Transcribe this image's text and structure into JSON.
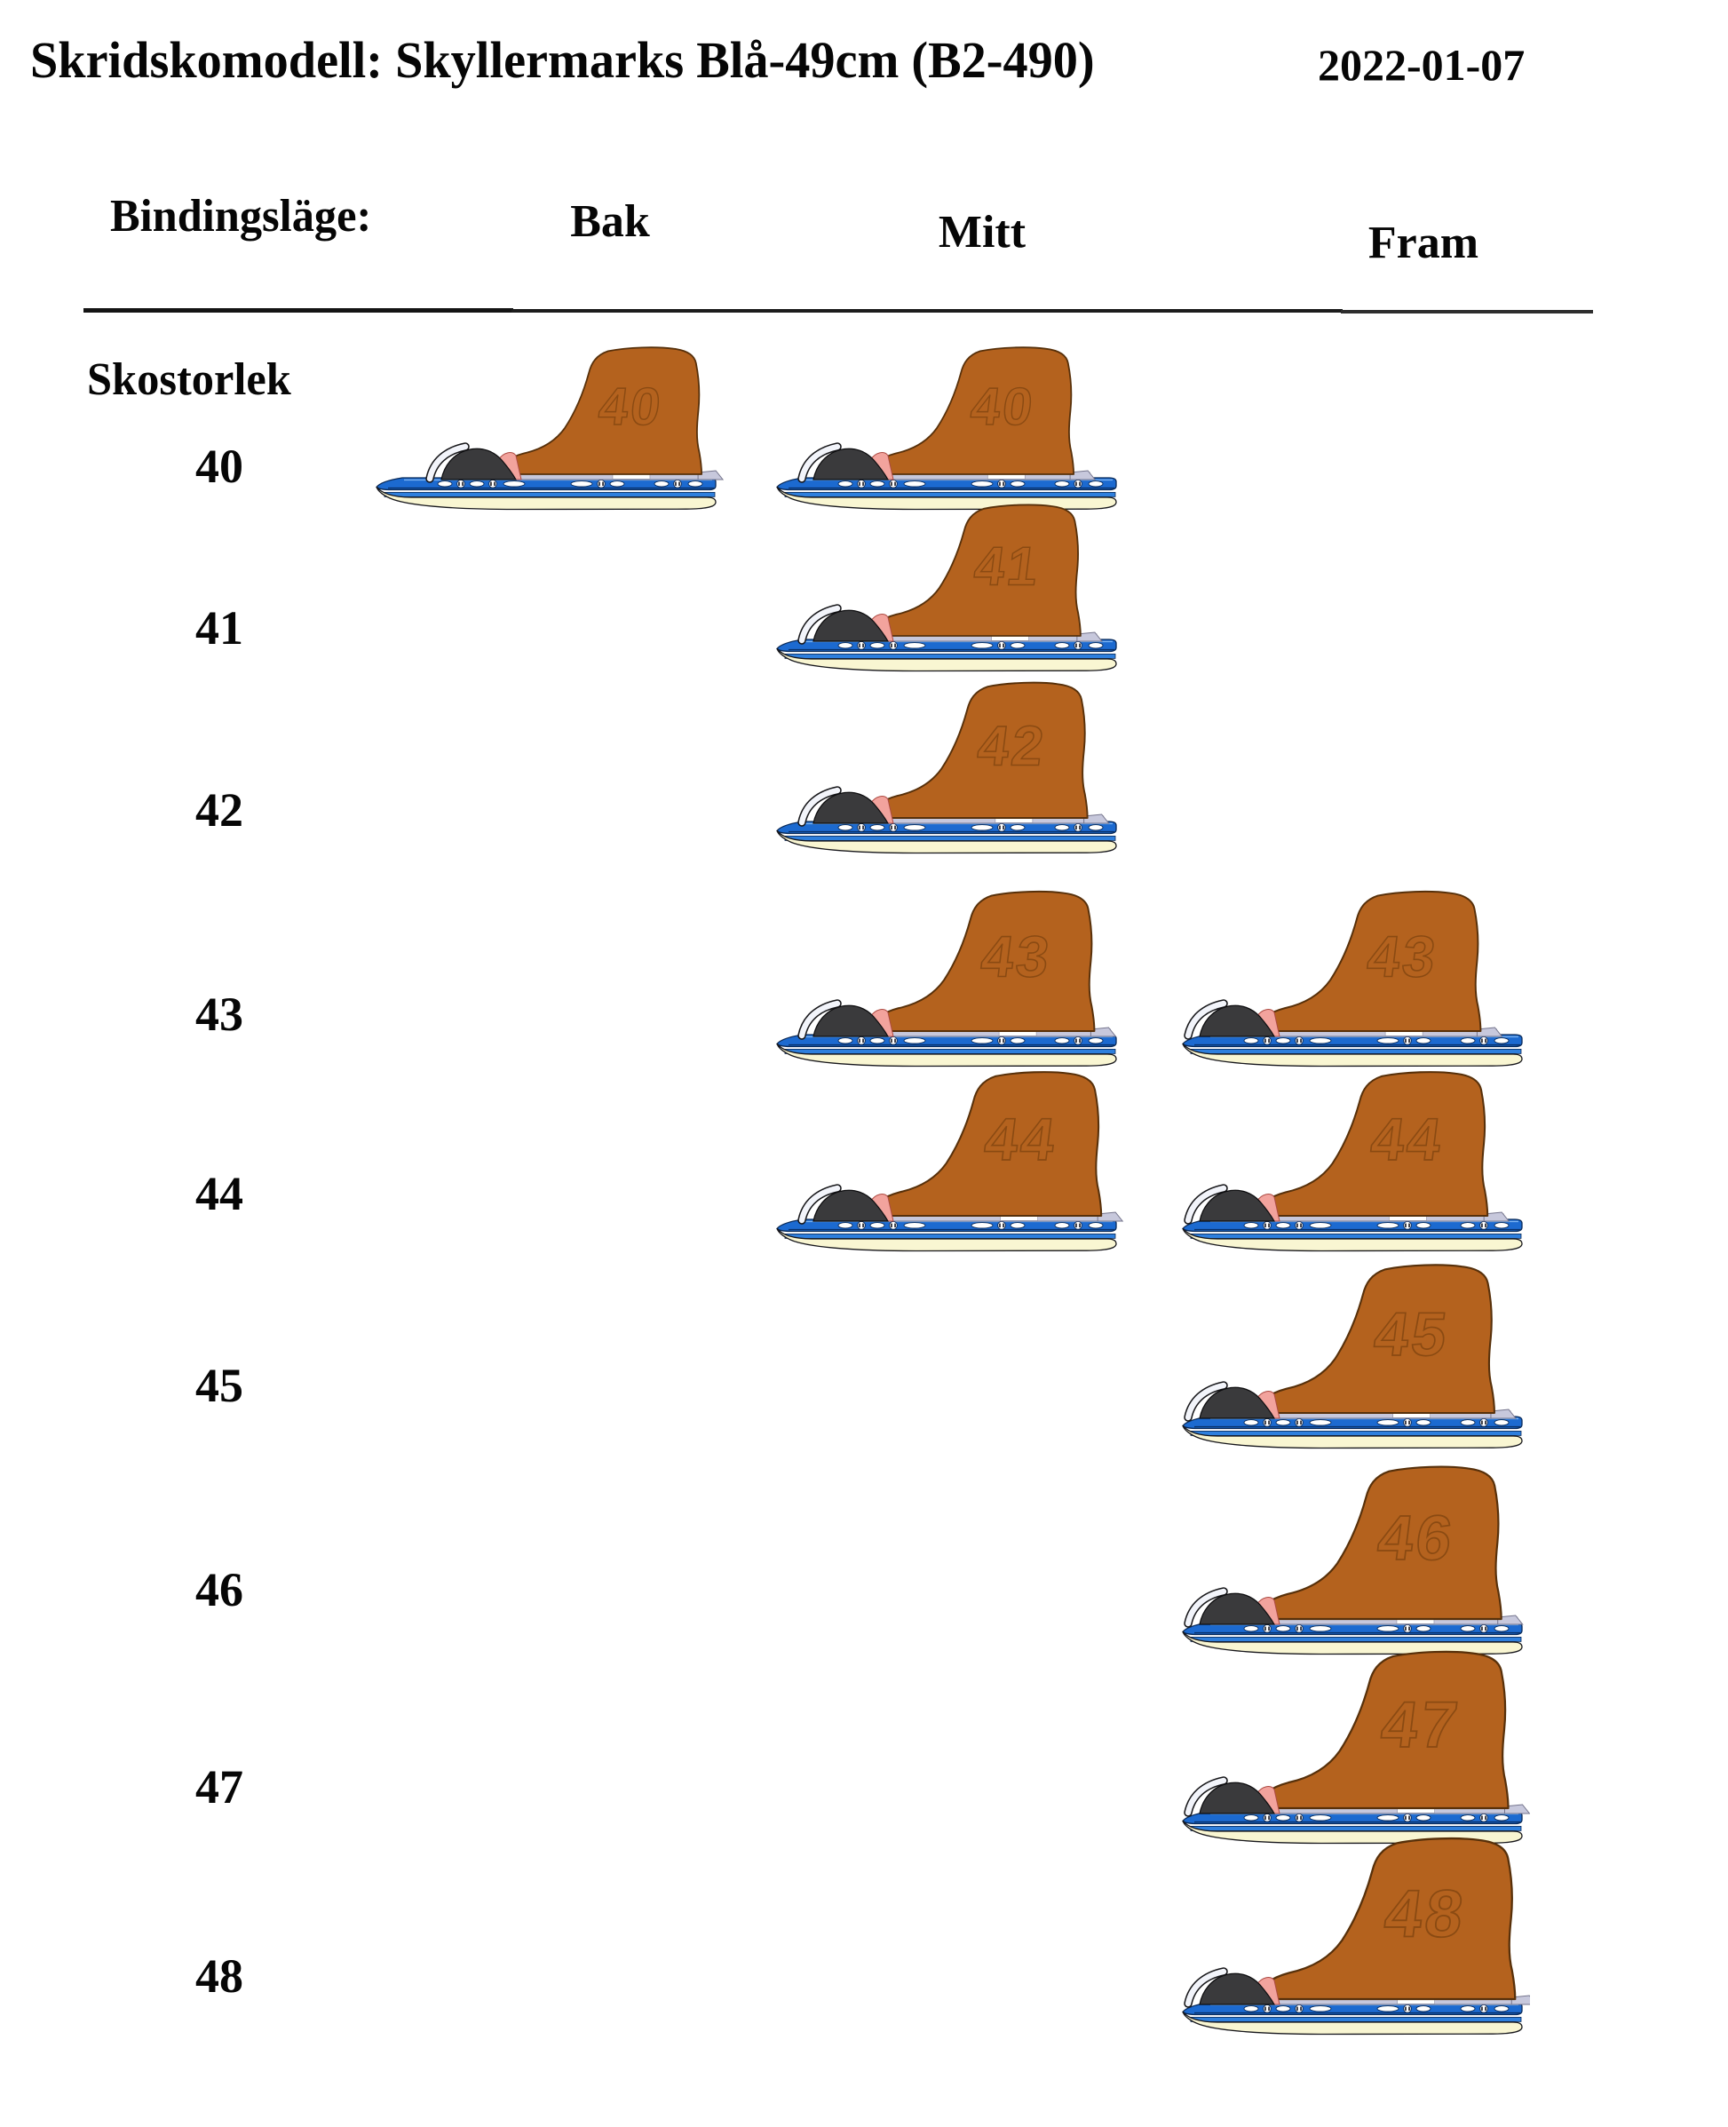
{
  "header": {
    "title": "Skridskomodell: Skyllermarks Blå-49cm  (B2-490)",
    "date": "2022-01-07"
  },
  "table": {
    "binding_label": "Bindingsläge:",
    "columns": [
      "Bak",
      "Mitt",
      "Fram"
    ],
    "row_header": "Skostorlek",
    "rows": [
      {
        "size": "40",
        "positions": [
          "Bak",
          "Mitt"
        ]
      },
      {
        "size": "41",
        "positions": [
          "Mitt"
        ]
      },
      {
        "size": "42",
        "positions": [
          "Mitt"
        ]
      },
      {
        "size": "43",
        "positions": [
          "Mitt",
          "Fram"
        ]
      },
      {
        "size": "44",
        "positions": [
          "Mitt",
          "Fram"
        ]
      },
      {
        "size": "45",
        "positions": [
          "Fram"
        ]
      },
      {
        "size": "46",
        "positions": [
          "Fram"
        ]
      },
      {
        "size": "47",
        "positions": [
          "Fram"
        ]
      },
      {
        "size": "48",
        "positions": [
          "Fram"
        ]
      }
    ]
  },
  "skate": {
    "colors": {
      "boot": "#b4621e",
      "boot_outline": "#57300a",
      "size_number": "#8a4a12",
      "rail_blue": "#1c6ad0",
      "rail_outline": "#0a2a58",
      "rail_highlight": "#7ab2f0",
      "rail_shadow": "#083068",
      "slot_white": "#ffffff",
      "screw_dark": "#3c3c44",
      "lower_strip": "#2e7fdd",
      "runner_cream": "#f9f6d2",
      "runner_outline": "#17171c",
      "binding_dark": "#3a3a3c",
      "binding_outline": "#0c0c0e",
      "binding_highlight": "#f2f4fa",
      "heel_pad_pink": "#f2a39d",
      "heel_pad_outline": "#ad4a42",
      "mount_plate": "#c7c8dc",
      "mount_plate_outline": "#74748c"
    }
  }
}
